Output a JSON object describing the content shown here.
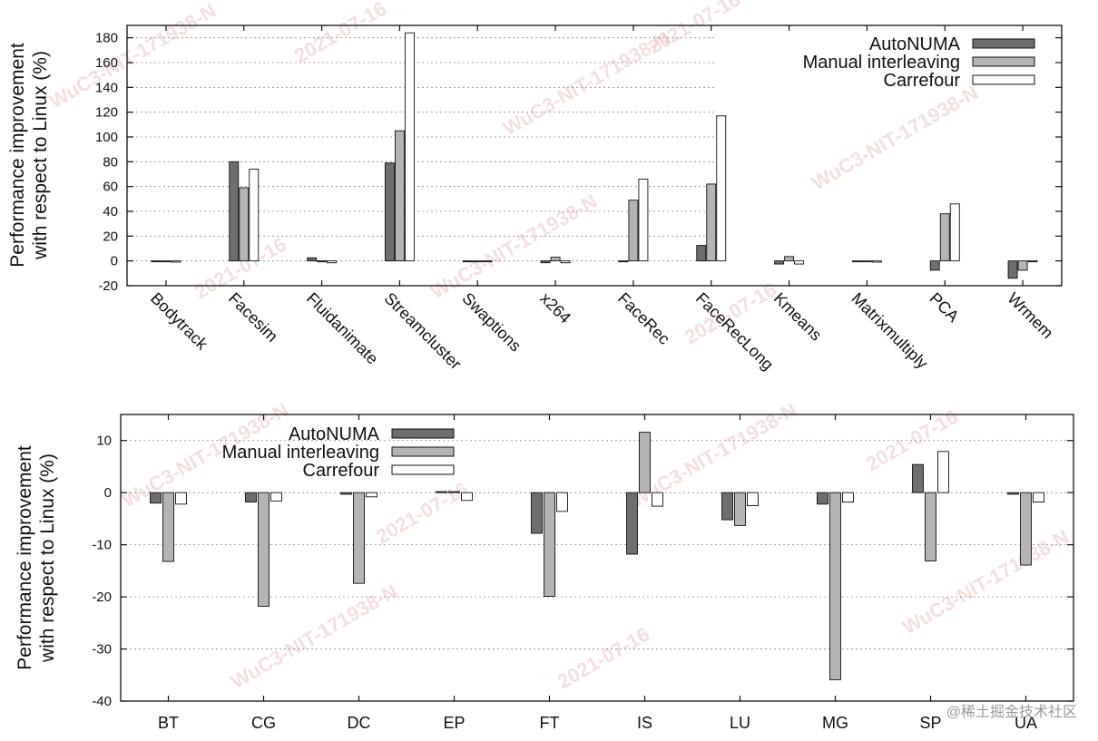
{
  "chart_data": [
    {
      "type": "bar",
      "ylabel_line1": "Performance improvement",
      "ylabel_line2": "with respect to Linux (%)",
      "ylim": [
        -20,
        190
      ],
      "yticks": [
        -20,
        0,
        20,
        40,
        60,
        80,
        100,
        120,
        140,
        160,
        180
      ],
      "grid": true,
      "legend_position": "top-right",
      "categories": [
        "Bodytrack",
        "Facesim",
        "Fluidanimate",
        "Streamcluster",
        "Swaptions",
        "x264",
        "FaceRec",
        "FaceRecLong",
        "Kmeans",
        "Matrixmultiply",
        "PCA",
        "Wrmem"
      ],
      "series": [
        {
          "name": "AutoNUMA",
          "color": "#6e6e6e",
          "values": [
            -0.5,
            80,
            2.5,
            79,
            -0.5,
            -1.5,
            -0.5,
            12.5,
            -2.5,
            -0.5,
            -7.5,
            -14
          ]
        },
        {
          "name": "Manual interleaving",
          "color": "#b4b4b4",
          "values": [
            -0.5,
            59,
            -0.5,
            105,
            -0.5,
            3,
            49,
            62,
            3.5,
            -0.5,
            38,
            -7.5
          ]
        },
        {
          "name": "Carrefour",
          "color": "#ffffff",
          "values": [
            -1,
            74,
            -1.5,
            184,
            -0.5,
            -1.5,
            66,
            117,
            -2.5,
            -1,
            46,
            -0.5
          ]
        }
      ]
    },
    {
      "type": "bar",
      "ylabel_line1": "Performance improvement",
      "ylabel_line2": "with respect to Linux (%)",
      "ylim": [
        -40,
        15
      ],
      "yticks": [
        -40,
        -30,
        -20,
        -10,
        0,
        10
      ],
      "grid": true,
      "legend_position": "top-left",
      "categories": [
        "BT",
        "CG",
        "DC",
        "EP",
        "FT",
        "IS",
        "LU",
        "MG",
        "SP",
        "UA"
      ],
      "series": [
        {
          "name": "AutoNUMA",
          "color": "#6e6e6e",
          "values": [
            -2,
            -1.8,
            -0.3,
            0.2,
            -7.8,
            -11.8,
            -5.2,
            -2.2,
            5.4,
            -0.3
          ]
        },
        {
          "name": "Manual interleaving",
          "color": "#b4b4b4",
          "values": [
            -13.2,
            -21.8,
            -17.4,
            0.2,
            -19.9,
            11.6,
            -6.3,
            -35.9,
            -13.1,
            -13.9
          ]
        },
        {
          "name": "Carrefour",
          "color": "#ffffff",
          "values": [
            -2.2,
            -1.6,
            -0.8,
            -1.5,
            -3.6,
            -2.6,
            -2.5,
            -1.8,
            7.9,
            -1.8
          ]
        }
      ]
    }
  ],
  "watermark": {
    "code": "WuC3-NIT-171938-N",
    "date": "2021-07-16"
  },
  "credit": "@稀土掘金技术社区"
}
